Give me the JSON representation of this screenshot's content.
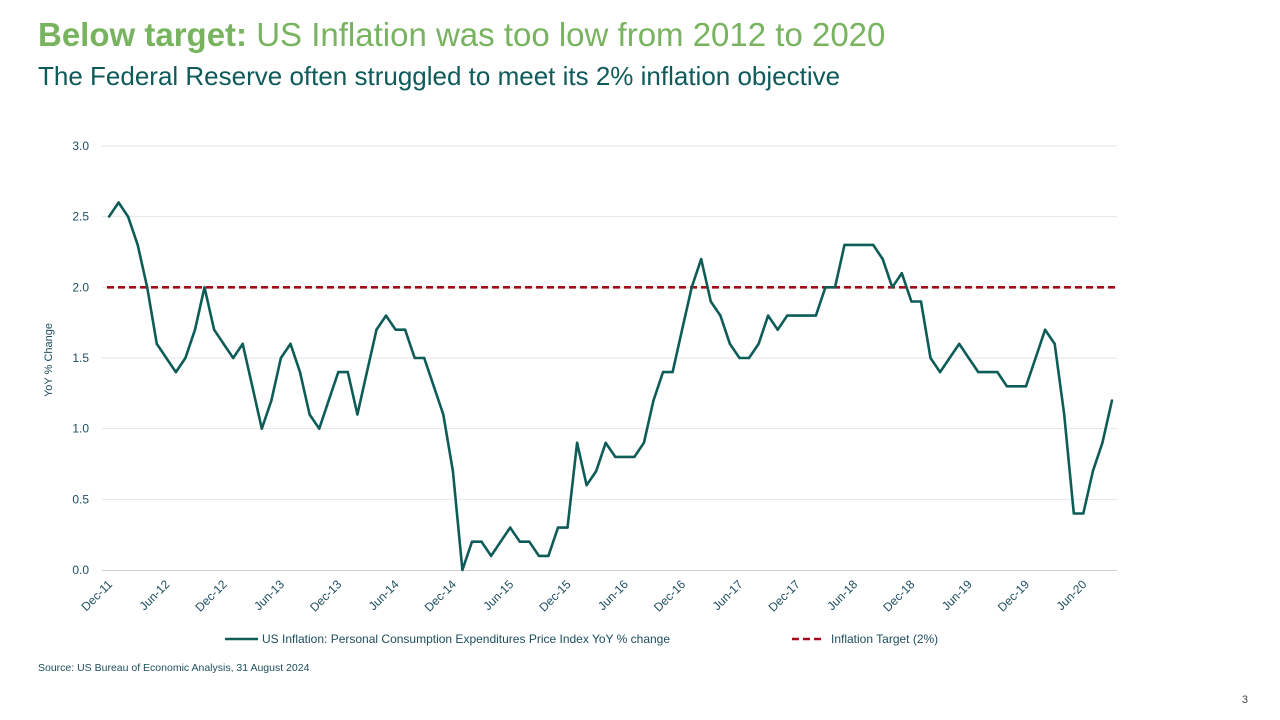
{
  "slide": {
    "title_bold": "Below target:",
    "title_rest": " US Inflation was too low from 2012 to 2020",
    "subtitle": "The Federal Reserve often struggled to meet its 2% inflation objective",
    "source": "Source: US Bureau of Economic Analysis, 31 August 2024",
    "page_number": "3"
  },
  "colors": {
    "title": "#78b35f",
    "subtitle": "#0f5a5a",
    "series": "#0e5c58",
    "target": "#a30d1a",
    "grid": "#e6e6e6"
  },
  "chart_data": {
    "type": "line",
    "title": "",
    "xlabel": "",
    "ylabel": "YoY % Change",
    "ylim": [
      0,
      3
    ],
    "yticks": [
      "0.0",
      "0.5",
      "1.0",
      "1.5",
      "2.0",
      "2.5",
      "3.0"
    ],
    "grid": true,
    "legend_position": "bottom",
    "x_start": "Dec-11",
    "x_end": "Aug-20",
    "x_tick_labels": [
      "Dec-11",
      "Jun-12",
      "Dec-12",
      "Jun-13",
      "Dec-13",
      "Jun-14",
      "Dec-14",
      "Jun-15",
      "Dec-15",
      "Jun-16",
      "Dec-16",
      "Jun-17",
      "Dec-17",
      "Jun-18",
      "Dec-18",
      "Jun-19",
      "Dec-19",
      "Jun-20"
    ],
    "series": [
      {
        "name": "US Inflation: Personal Consumption Expenditures Price Index YoY % change",
        "style": "solid",
        "values": [
          2.5,
          2.6,
          2.5,
          2.3,
          2.0,
          1.6,
          1.5,
          1.4,
          1.5,
          1.7,
          2.0,
          1.7,
          1.6,
          1.5,
          1.6,
          1.3,
          1.0,
          1.2,
          1.5,
          1.6,
          1.4,
          1.1,
          1.0,
          1.2,
          1.4,
          1.4,
          1.1,
          1.4,
          1.7,
          1.8,
          1.7,
          1.7,
          1.5,
          1.5,
          1.3,
          1.1,
          0.7,
          0.0,
          0.2,
          0.2,
          0.1,
          0.2,
          0.3,
          0.2,
          0.2,
          0.1,
          0.1,
          0.3,
          0.3,
          0.9,
          0.6,
          0.7,
          0.9,
          0.8,
          0.8,
          0.8,
          0.9,
          1.2,
          1.4,
          1.4,
          1.7,
          2.0,
          2.2,
          1.9,
          1.8,
          1.6,
          1.5,
          1.5,
          1.6,
          1.8,
          1.7,
          1.8,
          1.8,
          1.8,
          1.8,
          2.0,
          2.0,
          2.3,
          2.3,
          2.3,
          2.3,
          2.2,
          2.0,
          2.1,
          1.9,
          1.9,
          1.5,
          1.4,
          1.5,
          1.6,
          1.5,
          1.4,
          1.4,
          1.4,
          1.3,
          1.3,
          1.3,
          1.5,
          1.7,
          1.6,
          1.1,
          0.4,
          0.4,
          0.7,
          0.9,
          1.2
        ]
      },
      {
        "name": "Inflation Target (2%)",
        "style": "dashed",
        "constant": 2.0
      }
    ]
  }
}
